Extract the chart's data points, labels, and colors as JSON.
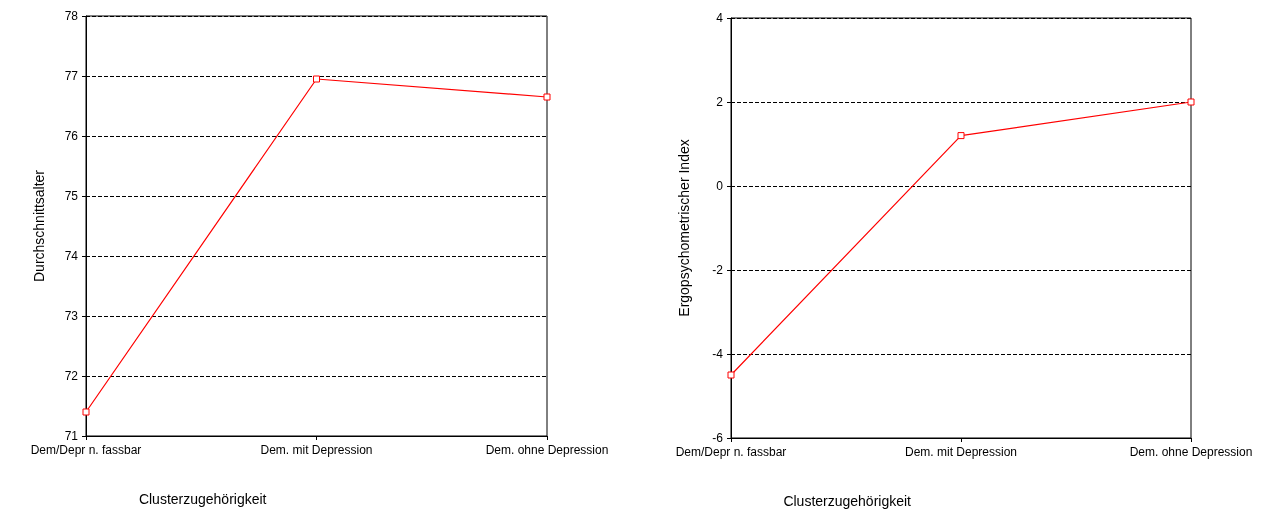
{
  "chart_data": [
    {
      "type": "line",
      "xlabel": "Clusterzugehörigkeit",
      "ylabel": "Durchschnittsalter",
      "categories": [
        "Dem/Depr n. fassbar",
        "Dem. mit Depression",
        "Dem. ohne Depression"
      ],
      "series": [
        {
          "color": "#ff0000",
          "values": [
            71.4,
            76.95,
            76.65
          ]
        }
      ],
      "ylim": [
        71,
        78
      ],
      "yticks": [
        71,
        72,
        73,
        74,
        75,
        76,
        77,
        78
      ],
      "grid": "y",
      "marker": "square",
      "line_style": "solid"
    },
    {
      "type": "line",
      "xlabel": "Clusterzugehörigkeit",
      "ylabel": "Ergopsychometrischer Index",
      "categories": [
        "Dem/Depr n. fassbar",
        "Dem. mit Depression",
        "Dem. ohne Depression"
      ],
      "series": [
        {
          "color": "#ff0000",
          "values": [
            -4.5,
            1.2,
            2.0
          ]
        }
      ],
      "ylim": [
        -6,
        4
      ],
      "yticks": [
        -6,
        -4,
        -2,
        0,
        2,
        4
      ],
      "grid": "y",
      "marker": "square",
      "line_style": "solid"
    }
  ]
}
